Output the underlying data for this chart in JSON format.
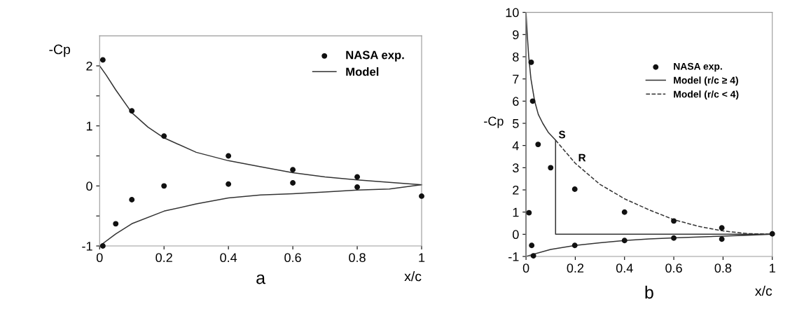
{
  "chart_data": [
    {
      "type": "scatter",
      "ylabel": "-Cp",
      "xlabel": "x/c",
      "annotations": [
        "a"
      ],
      "xlim": [
        0,
        1
      ],
      "ylim": [
        -1,
        2.5
      ],
      "xticks": [
        0,
        0.2,
        0.4,
        0.6,
        0.8,
        1
      ],
      "yticks": [
        {
          "value": -1,
          "label": "-1"
        },
        {
          "value": -0.5,
          "label": null
        },
        0,
        {
          "value": 0.5,
          "label": null
        },
        1,
        {
          "value": 1.5,
          "label": null
        },
        2
      ],
      "grid": false,
      "legend": "top right",
      "series": [
        {
          "name": "NASA exp.",
          "marker": "circle",
          "color": "#111111",
          "x": [
            0.01,
            0.1,
            0.2,
            0.4,
            0.6,
            0.8,
            0.01,
            0.05,
            0.1,
            0.2,
            0.4,
            0.6,
            0.8,
            1.0
          ],
          "values": [
            2.1,
            1.25,
            0.83,
            0.5,
            0.27,
            0.15,
            -1.0,
            -0.63,
            -0.23,
            0.0,
            0.03,
            0.05,
            -0.02,
            -0.17
          ]
        },
        {
          "name": "Model",
          "type": "line",
          "color": "#333333",
          "line_style": "solid",
          "x": [
            0,
            0.02,
            0.05,
            0.1,
            0.15,
            0.2,
            0.3,
            0.4,
            0.5,
            0.6,
            0.7,
            0.8,
            0.9,
            1
          ],
          "values": [
            2,
            1.85,
            1.6,
            1.22,
            0.98,
            0.8,
            0.56,
            0.42,
            0.32,
            0.22,
            0.15,
            0.1,
            0.06,
            0.02
          ]
        },
        {
          "type": "line",
          "color": "#333333",
          "line_style": "solid",
          "x": [
            0,
            0.05,
            0.1,
            0.2,
            0.3,
            0.4,
            0.5,
            0.6,
            0.7,
            0.8,
            0.9,
            1
          ],
          "values": [
            -1,
            -0.8,
            -0.63,
            -0.42,
            -0.3,
            -0.2,
            -0.15,
            -0.13,
            -0.1,
            -0.07,
            -0.05,
            0.02
          ]
        }
      ]
    },
    {
      "type": "scatter",
      "ylabel": "-Cp",
      "xlabel": "x/c",
      "annotations": [
        "b",
        {
          "text": "S",
          "x": 0.12,
          "y": 4.24
        },
        {
          "text": "R",
          "x": 0.2,
          "y": 3.2
        }
      ],
      "xlim": [
        0,
        1
      ],
      "ylim": [
        -1,
        10
      ],
      "xticks": [
        0,
        0.2,
        0.4,
        0.6,
        0.8,
        1
      ],
      "yticks": [
        {
          "value": -1,
          "label": "-1"
        },
        0,
        1,
        2,
        3,
        4,
        5,
        6,
        7,
        8,
        9,
        10
      ],
      "grid": false,
      "legend": "top right",
      "series": [
        {
          "name": "NASA exp.",
          "marker": "circle",
          "color": "#111111",
          "x": [
            0.012,
            0.021,
            0.027,
            0.049,
            0.1,
            0.198,
            0.4,
            0.6,
            0.795,
            1.0,
            0.023,
            0.03,
            0.198,
            0.4,
            0.6,
            0.795
          ],
          "values": [
            0.97,
            7.75,
            6.0,
            4.05,
            3.0,
            2.03,
            1.0,
            0.6,
            0.29,
            0.02,
            -0.5,
            -0.97,
            -0.5,
            -0.28,
            -0.17,
            -0.22
          ]
        },
        {
          "name": "Model (r/c ≥ 4)",
          "type": "line",
          "color": "#333333",
          "line_style": "solid",
          "x": [
            0,
            0,
            0.005,
            0.011,
            0.02,
            0.035,
            0.05,
            0.068,
            0.09,
            0.12,
            0.12,
            1
          ],
          "values": [
            -1,
            10,
            9,
            8,
            7,
            6,
            5.4,
            5,
            4.6,
            4.24,
            0,
            0
          ]
        },
        {
          "type": "line",
          "color": "#333333",
          "line_style": "solid",
          "x": [
            0,
            0.03,
            0.1,
            0.2,
            0.3,
            0.4,
            0.5,
            0.6,
            0.7,
            0.8,
            0.9,
            1
          ],
          "values": [
            -1,
            -0.9,
            -0.68,
            -0.5,
            -0.38,
            -0.28,
            -0.21,
            -0.16,
            -0.12,
            -0.08,
            -0.04,
            0
          ]
        },
        {
          "name": "Model (r/c < 4)",
          "type": "line",
          "color": "#333333",
          "line_style": "dashed",
          "x": [
            0.12,
            0.2,
            0.3,
            0.4,
            0.5,
            0.6,
            0.7,
            0.8,
            0.9,
            1
          ],
          "values": [
            4.24,
            3.2,
            2.25,
            1.6,
            1.1,
            0.66,
            0.36,
            0.15,
            0.03,
            0
          ]
        }
      ]
    }
  ]
}
